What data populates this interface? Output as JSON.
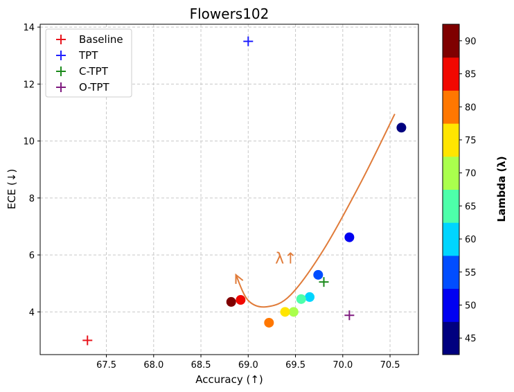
{
  "chart_data": {
    "type": "scatter",
    "title": "Flowers102",
    "xlabel": "Accuracy (↑)",
    "ylabel": "ECE (↓)",
    "xlim": [
      66.8,
      70.8
    ],
    "ylim": [
      2.5,
      14.1
    ],
    "xticks": [
      "67.5",
      "68.0",
      "68.5",
      "69.0",
      "69.5",
      "70.0",
      "70.5"
    ],
    "yticks": [
      "4",
      "6",
      "8",
      "10",
      "12",
      "14"
    ],
    "grid": true,
    "legend_position": "top-left",
    "markers": [
      {
        "name": "Baseline",
        "color": "#e8141c",
        "x": 67.3,
        "y": 3.0
      },
      {
        "name": "TPT",
        "color": "#1f1fff",
        "x": 69.0,
        "y": 13.5
      },
      {
        "name": "C-TPT",
        "color": "#1b8a1b",
        "x": 69.8,
        "y": 5.05
      },
      {
        "name": "O-TPT",
        "color": "#7f1a7f",
        "x": 70.07,
        "y": 3.88
      }
    ],
    "lambda_series": [
      {
        "lambda": 45,
        "x": 70.62,
        "y": 10.47
      },
      {
        "lambda": 50,
        "x": 70.07,
        "y": 6.62
      },
      {
        "lambda": 55,
        "x": 69.74,
        "y": 5.3
      },
      {
        "lambda": 60,
        "x": 69.65,
        "y": 4.52
      },
      {
        "lambda": 65,
        "x": 69.56,
        "y": 4.45
      },
      {
        "lambda": 70,
        "x": 69.48,
        "y": 4.0
      },
      {
        "lambda": 75,
        "x": 69.39,
        "y": 4.0
      },
      {
        "lambda": 80,
        "x": 69.22,
        "y": 3.62
      },
      {
        "lambda": 85,
        "x": 68.92,
        "y": 4.42
      },
      {
        "lambda": 90,
        "x": 68.82,
        "y": 4.35
      }
    ],
    "annotation": {
      "text": "λ↑",
      "x": 69.4,
      "y": 5.7
    },
    "trend_curve": [
      [
        70.55,
        10.95
      ],
      [
        70.2,
        8.6
      ],
      [
        69.8,
        6.2
      ],
      [
        69.45,
        4.6
      ],
      [
        69.2,
        4.18
      ],
      [
        69.0,
        4.4
      ],
      [
        68.87,
        5.3
      ]
    ],
    "colorbar": {
      "label": "Lambda (λ)",
      "range": [
        42.5,
        92.5
      ],
      "ticks": [
        "45",
        "50",
        "55",
        "60",
        "65",
        "70",
        "75",
        "80",
        "85",
        "90"
      ],
      "bands": [
        "#00007f",
        "#0000f1",
        "#004dff",
        "#00d5ff",
        "#4dffaa",
        "#aaff4d",
        "#ffe500",
        "#ff7700",
        "#f10800",
        "#7f0000"
      ]
    }
  }
}
